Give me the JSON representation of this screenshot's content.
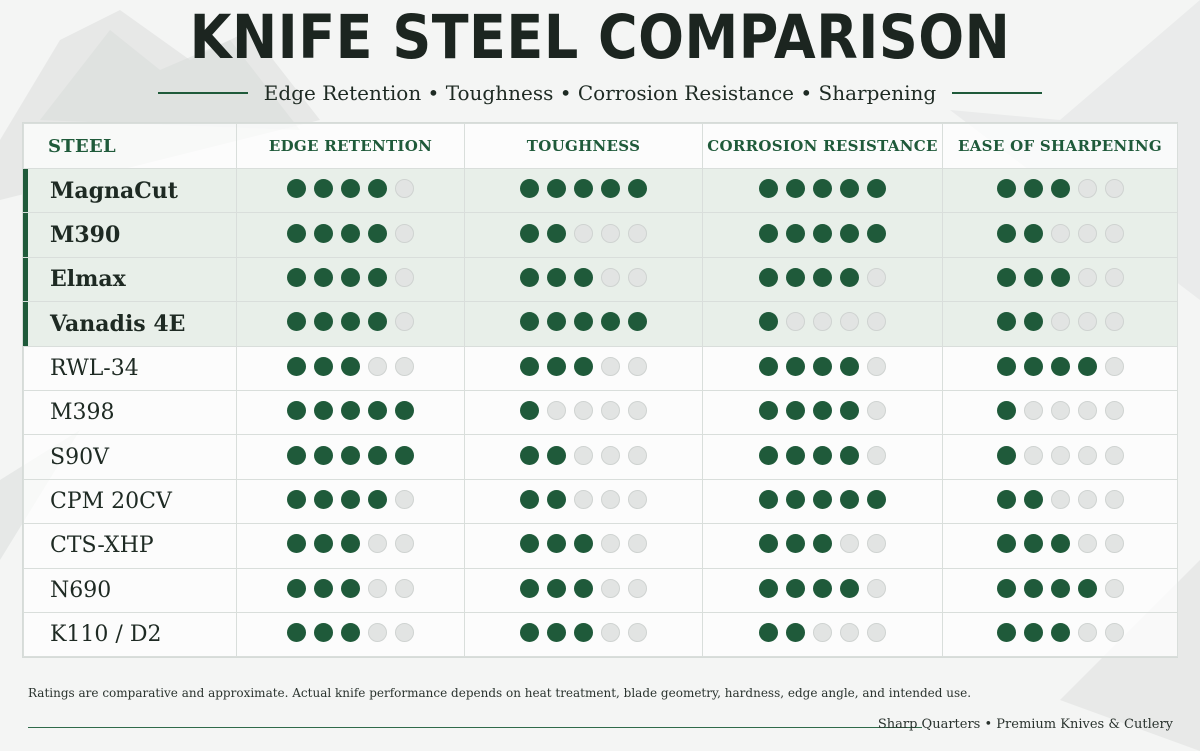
{
  "header": {
    "title": "KNIFE STEEL COMPARISON",
    "subtitle": "Edge Retention • Toughness • Corrosion Resistance • Sharpening"
  },
  "chart_data": {
    "type": "table",
    "max_rating": 5,
    "columns": [
      "STEEL",
      "EDGE RETENTION",
      "TOUGHNESS",
      "CORROSION RESISTANCE",
      "EASE OF SHARPENING"
    ],
    "rows": [
      {
        "steel": "MagnaCut",
        "featured": true,
        "ratings": [
          4,
          5,
          5,
          3
        ]
      },
      {
        "steel": "M390",
        "featured": true,
        "ratings": [
          4,
          2,
          5,
          2
        ]
      },
      {
        "steel": "Elmax",
        "featured": true,
        "ratings": [
          4,
          3,
          4,
          3
        ]
      },
      {
        "steel": "Vanadis 4E",
        "featured": true,
        "ratings": [
          4,
          5,
          1,
          2
        ]
      },
      {
        "steel": "RWL-34",
        "featured": false,
        "ratings": [
          3,
          3,
          4,
          4
        ]
      },
      {
        "steel": "M398",
        "featured": false,
        "ratings": [
          5,
          1,
          4,
          1
        ]
      },
      {
        "steel": "S90V",
        "featured": false,
        "ratings": [
          5,
          2,
          4,
          1
        ]
      },
      {
        "steel": "CPM 20CV",
        "featured": false,
        "ratings": [
          4,
          2,
          5,
          2
        ]
      },
      {
        "steel": "CTS-XHP",
        "featured": false,
        "ratings": [
          3,
          3,
          3,
          3
        ]
      },
      {
        "steel": "N690",
        "featured": false,
        "ratings": [
          3,
          3,
          4,
          4
        ]
      },
      {
        "steel": "K110 / D2",
        "featured": false,
        "ratings": [
          3,
          3,
          2,
          3
        ]
      }
    ]
  },
  "colors": {
    "filled": "#1f5a3a",
    "empty": "#e2e4e3",
    "featured_row": "#e8efe9"
  },
  "footer": {
    "note": "Ratings are comparative and approximate. Actual knife performance depends on heat treatment, blade geometry, hardness, edge angle, and intended use.",
    "brand": "Sharp Quarters • Premium Knives & Cutlery"
  }
}
